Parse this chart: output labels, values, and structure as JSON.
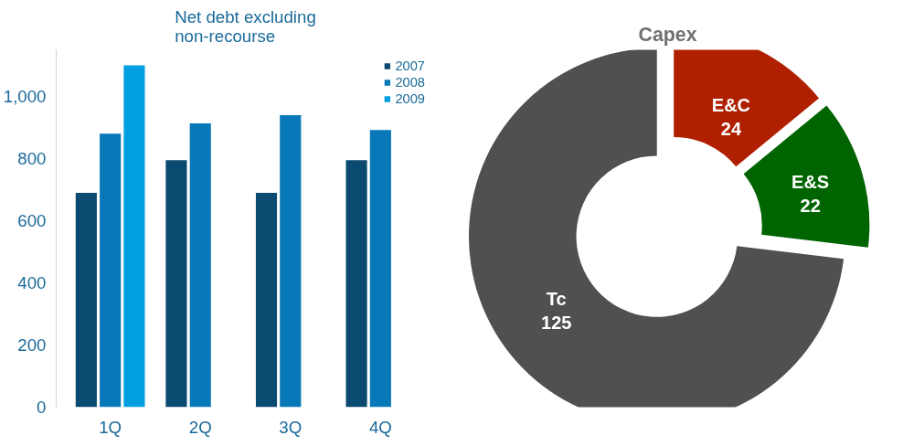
{
  "chart_data": [
    {
      "type": "bar",
      "title": "Net debt excluding non-recourse",
      "categories": [
        "1Q",
        "2Q",
        "3Q",
        "4Q"
      ],
      "series": [
        {
          "name": "2007",
          "color": "#0a4a70",
          "values": [
            690,
            795,
            690,
            795
          ]
        },
        {
          "name": "2008",
          "color": "#0878b8",
          "values": [
            880,
            913,
            940,
            892
          ]
        },
        {
          "name": "2009",
          "color": "#00a0e0",
          "values": [
            1100,
            null,
            null,
            null
          ]
        }
      ],
      "ylim": [
        0,
        1150
      ],
      "yticks": [
        0,
        200,
        400,
        600,
        800,
        {
          "value": 1000,
          "label": "1,000"
        }
      ],
      "grid": false,
      "legend": "top right"
    },
    {
      "type": "donut",
      "title": "Capex",
      "categories": [
        "E&C",
        "E&S",
        "Tc"
      ],
      "values": [
        24,
        22,
        125
      ],
      "colors": [
        "#b02000",
        "#006400",
        "#505050"
      ],
      "data_labels": true
    }
  ]
}
